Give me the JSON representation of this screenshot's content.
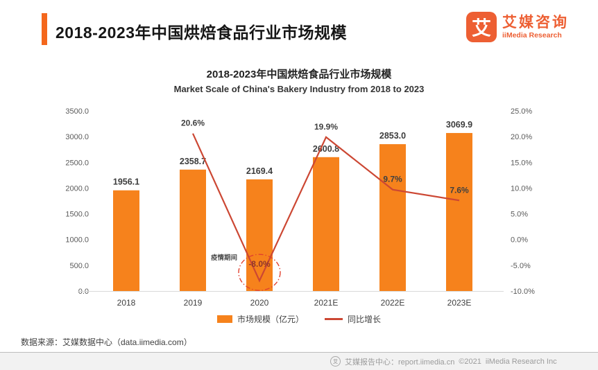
{
  "header": {
    "title": "2018-2023年中国烘焙食品行业市场规模",
    "logo": {
      "mark": "艾",
      "name_cn": "艾媒咨询",
      "name_en": "iiMedia Research",
      "color": "#ED5F33",
      "icon": "iimedia-logo-icon"
    }
  },
  "chart_data": {
    "type": "bar+line",
    "title": "2018-2023年中国烘焙食品行业市场规模",
    "subtitle": "Market Scale of China's Bakery Industry from 2018 to 2023",
    "categories": [
      "2018",
      "2019",
      "2020",
      "2021E",
      "2022E",
      "2023E"
    ],
    "series": [
      {
        "name": "市场规模（亿元）",
        "type": "bar",
        "values": [
          1956.1,
          2358.7,
          2169.4,
          2600.8,
          2853.0,
          3069.9
        ],
        "color": "#F6821C"
      },
      {
        "name": "同比增长",
        "type": "line",
        "values": [
          null,
          20.6,
          -8.0,
          19.9,
          9.7,
          7.6
        ],
        "color": "#CC4733"
      }
    ],
    "left_axis": {
      "min": 0,
      "max": 3500,
      "step": 500,
      "suffix": ""
    },
    "right_axis": {
      "min": -10,
      "max": 25,
      "step": 5,
      "suffix": "%"
    },
    "grid": false,
    "legend_position": "bottom-center",
    "annotation": {
      "label": "疫情期间",
      "index": 2,
      "circle_color": "#E2402E"
    }
  },
  "source": "数据来源：艾媒数据中心（data.iimedia.com）",
  "footer": {
    "icon": "iimedia-circle-icon",
    "icon_glyph": "艾",
    "report_text": "艾媒报告中心：report.iimedia.cn",
    "copyright": "©2021",
    "company": "iiMedia Research  Inc"
  }
}
